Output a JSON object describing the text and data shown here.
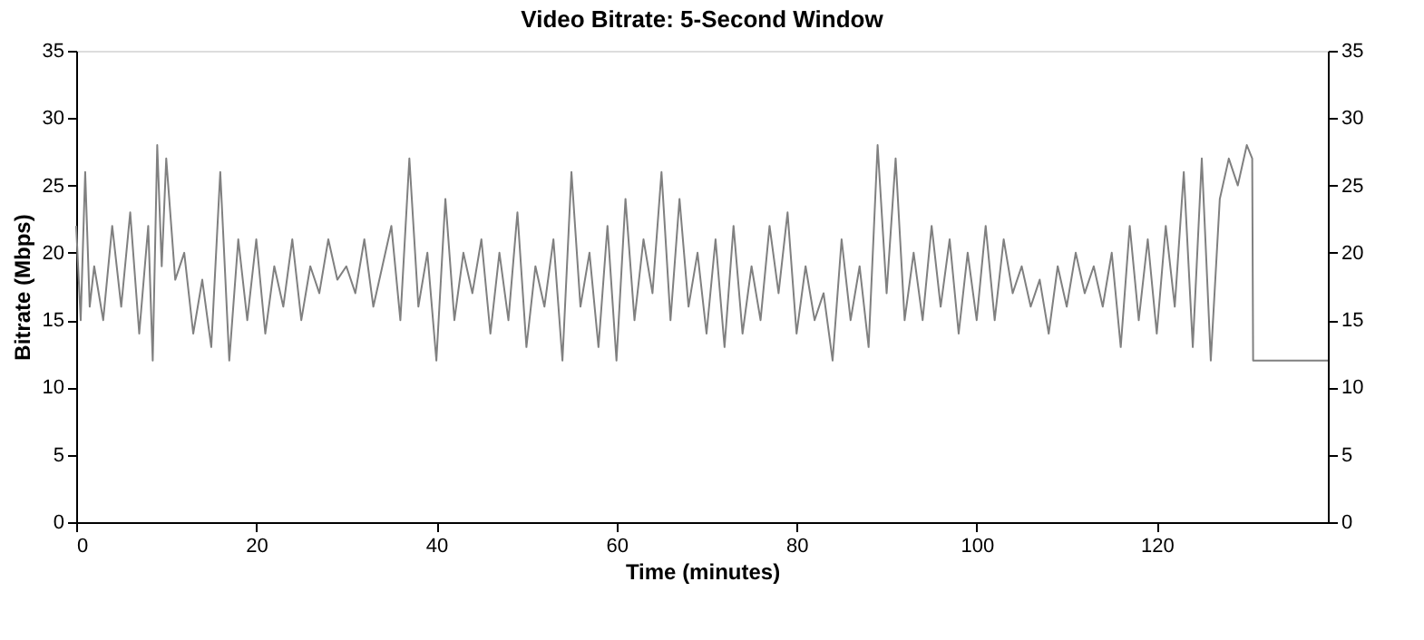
{
  "chart_data": {
    "type": "line",
    "title": "Video Bitrate: 5-Second Window",
    "xlabel": "Time (minutes)",
    "ylabel": "Bitrate (Mbps)",
    "x": [
      0,
      0.5,
      1,
      1.5,
      2,
      3,
      4,
      5,
      6,
      7,
      8,
      8.5,
      9,
      9.5,
      10,
      11,
      12,
      13,
      14,
      15,
      16,
      17,
      18,
      19,
      20,
      21,
      22,
      23,
      24,
      25,
      26,
      27,
      28,
      29,
      30,
      31,
      32,
      33,
      34,
      35,
      36,
      37,
      38,
      39,
      40,
      41,
      42,
      43,
      44,
      45,
      46,
      47,
      48,
      49,
      50,
      51,
      52,
      53,
      54,
      55,
      56,
      57,
      58,
      59,
      60,
      61,
      62,
      63,
      64,
      65,
      66,
      67,
      68,
      69,
      70,
      71,
      72,
      73,
      74,
      75,
      76,
      77,
      78,
      79,
      80,
      81,
      82,
      83,
      84,
      85,
      86,
      87,
      88,
      89,
      90,
      91,
      92,
      93,
      94,
      95,
      96,
      97,
      98,
      99,
      100,
      101,
      102,
      103,
      104,
      105,
      106,
      107,
      108,
      109,
      110,
      111,
      112,
      113,
      114,
      115,
      116,
      117,
      118,
      119,
      120,
      121,
      122,
      123,
      124,
      125,
      126,
      127,
      128,
      129,
      130,
      130.6,
      130.7,
      139
    ],
    "series": [
      {
        "color": "#808080",
        "values": [
          22,
          15,
          26,
          16,
          19,
          15,
          22,
          16,
          23,
          14,
          22,
          12,
          28,
          19,
          27,
          18,
          20,
          14,
          18,
          13,
          26,
          12,
          21,
          15,
          21,
          14,
          19,
          16,
          21,
          15,
          19,
          17,
          21,
          18,
          19,
          17,
          21,
          16,
          19,
          22,
          15,
          27,
          16,
          20,
          12,
          24,
          15,
          20,
          17,
          21,
          14,
          20,
          15,
          23,
          13,
          19,
          16,
          21,
          12,
          26,
          16,
          20,
          13,
          22,
          12,
          24,
          15,
          21,
          17,
          26,
          15,
          24,
          16,
          20,
          14,
          21,
          13,
          22,
          14,
          19,
          15,
          22,
          17,
          23,
          14,
          19,
          15,
          17,
          12,
          21,
          15,
          19,
          13,
          28,
          17,
          27,
          15,
          20,
          15,
          22,
          16,
          21,
          14,
          20,
          15,
          22,
          15,
          21,
          17,
          19,
          16,
          18,
          14,
          19,
          16,
          20,
          17,
          19,
          16,
          20,
          13,
          22,
          15,
          21,
          14,
          22,
          16,
          26,
          13,
          27,
          12,
          24,
          27,
          25,
          28,
          27,
          12,
          12
        ]
      }
    ],
    "xlim": [
      0,
      139
    ],
    "xticks": [
      0,
      20,
      40,
      60,
      80,
      100,
      120
    ],
    "ylim": [
      0,
      35
    ],
    "yticks": [
      0,
      5,
      10,
      15,
      20,
      25,
      30,
      35
    ],
    "y2lim": [
      0,
      35
    ],
    "y2ticks": [
      0,
      5,
      10,
      15,
      20,
      25,
      30,
      35
    ],
    "grid": false,
    "legend": false,
    "marker": "none",
    "line_style": "solid"
  }
}
